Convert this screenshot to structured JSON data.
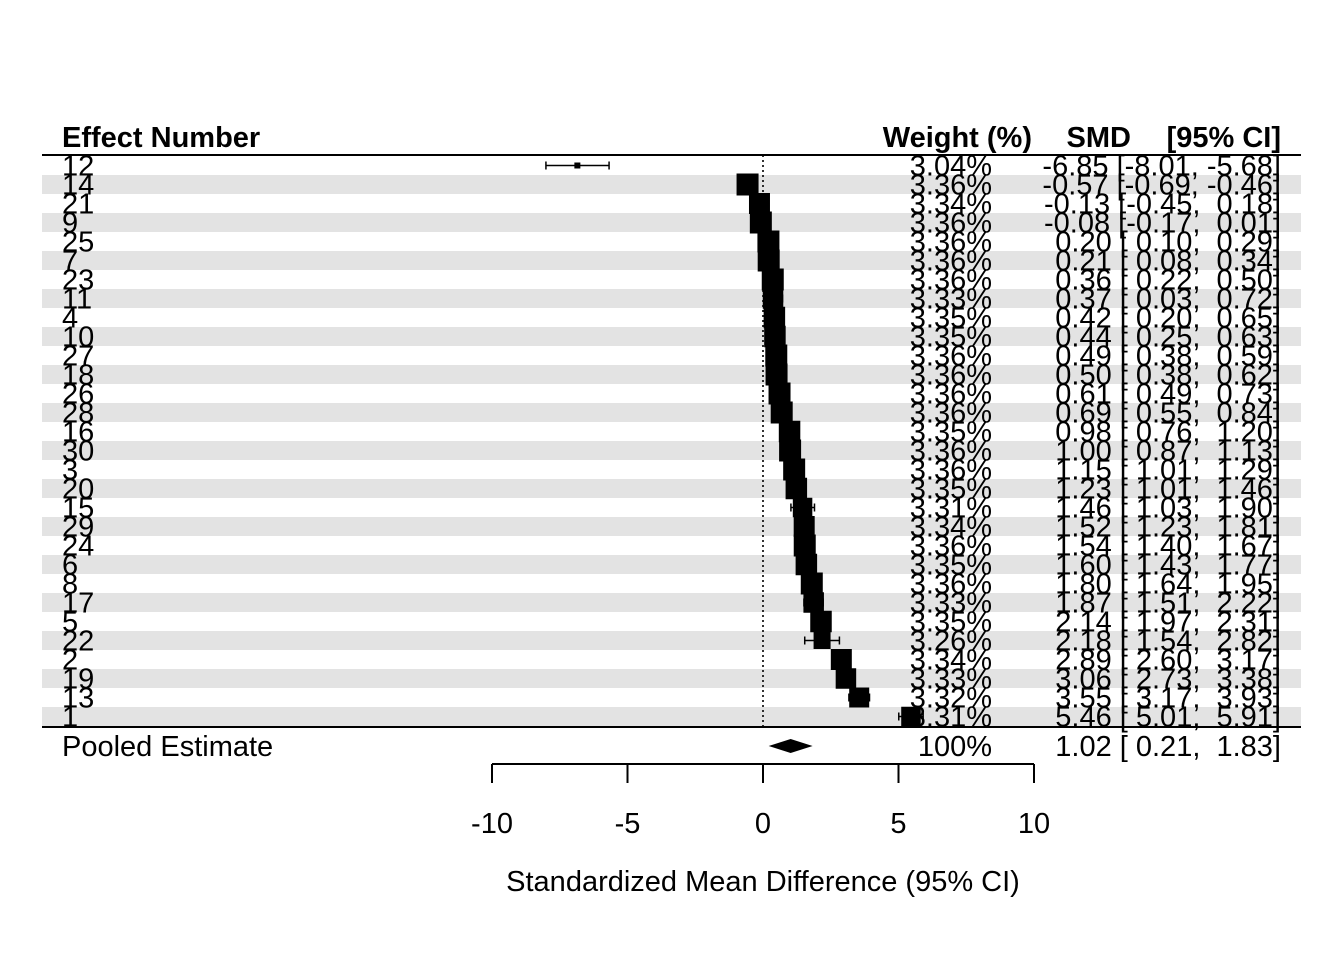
{
  "chart_data": {
    "type": "forest",
    "header": {
      "label_col": "Effect Number",
      "weight_col": "Weight (%)",
      "smd_col": "SMD",
      "ci_col": "[95% CI]"
    },
    "xlabel": "Standardized Mean Difference (95% CI)",
    "xlim": [
      -10,
      10
    ],
    "xticks": [
      -10,
      -5,
      0,
      5,
      10
    ],
    "reference_line": 0,
    "striped_rows": true,
    "rows": [
      {
        "label": "12",
        "weight": "3.04%",
        "smd": -6.85,
        "lo": -8.01,
        "hi": -5.68
      },
      {
        "label": "14",
        "weight": "3.36%",
        "smd": -0.57,
        "lo": -0.69,
        "hi": -0.46
      },
      {
        "label": "21",
        "weight": "3.34%",
        "smd": -0.13,
        "lo": -0.45,
        "hi": 0.18
      },
      {
        "label": "9",
        "weight": "3.36%",
        "smd": -0.08,
        "lo": -0.17,
        "hi": 0.01
      },
      {
        "label": "25",
        "weight": "3.36%",
        "smd": 0.2,
        "lo": 0.1,
        "hi": 0.29
      },
      {
        "label": "7",
        "weight": "3.36%",
        "smd": 0.21,
        "lo": 0.08,
        "hi": 0.34
      },
      {
        "label": "23",
        "weight": "3.36%",
        "smd": 0.36,
        "lo": 0.22,
        "hi": 0.5
      },
      {
        "label": "11",
        "weight": "3.33%",
        "smd": 0.37,
        "lo": 0.03,
        "hi": 0.72
      },
      {
        "label": "4",
        "weight": "3.35%",
        "smd": 0.42,
        "lo": 0.2,
        "hi": 0.65
      },
      {
        "label": "10",
        "weight": "3.35%",
        "smd": 0.44,
        "lo": 0.25,
        "hi": 0.63
      },
      {
        "label": "27",
        "weight": "3.36%",
        "smd": 0.49,
        "lo": 0.38,
        "hi": 0.59
      },
      {
        "label": "18",
        "weight": "3.36%",
        "smd": 0.5,
        "lo": 0.38,
        "hi": 0.62
      },
      {
        "label": "26",
        "weight": "3.36%",
        "smd": 0.61,
        "lo": 0.49,
        "hi": 0.73
      },
      {
        "label": "28",
        "weight": "3.36%",
        "smd": 0.69,
        "lo": 0.55,
        "hi": 0.84
      },
      {
        "label": "16",
        "weight": "3.35%",
        "smd": 0.98,
        "lo": 0.76,
        "hi": 1.2
      },
      {
        "label": "30",
        "weight": "3.36%",
        "smd": 1.0,
        "lo": 0.87,
        "hi": 1.13
      },
      {
        "label": "3",
        "weight": "3.36%",
        "smd": 1.15,
        "lo": 1.01,
        "hi": 1.29
      },
      {
        "label": "20",
        "weight": "3.35%",
        "smd": 1.23,
        "lo": 1.01,
        "hi": 1.46
      },
      {
        "label": "15",
        "weight": "3.31%",
        "smd": 1.46,
        "lo": 1.03,
        "hi": 1.9
      },
      {
        "label": "29",
        "weight": "3.34%",
        "smd": 1.52,
        "lo": 1.23,
        "hi": 1.81
      },
      {
        "label": "24",
        "weight": "3.36%",
        "smd": 1.54,
        "lo": 1.4,
        "hi": 1.67
      },
      {
        "label": "6",
        "weight": "3.35%",
        "smd": 1.6,
        "lo": 1.43,
        "hi": 1.77
      },
      {
        "label": "8",
        "weight": "3.36%",
        "smd": 1.8,
        "lo": 1.64,
        "hi": 1.95
      },
      {
        "label": "17",
        "weight": "3.33%",
        "smd": 1.87,
        "lo": 1.51,
        "hi": 2.22
      },
      {
        "label": "5",
        "weight": "3.35%",
        "smd": 2.14,
        "lo": 1.97,
        "hi": 2.31
      },
      {
        "label": "22",
        "weight": "3.26%",
        "smd": 2.18,
        "lo": 1.54,
        "hi": 2.82
      },
      {
        "label": "2",
        "weight": "3.34%",
        "smd": 2.89,
        "lo": 2.6,
        "hi": 3.17
      },
      {
        "label": "19",
        "weight": "3.33%",
        "smd": 3.06,
        "lo": 2.73,
        "hi": 3.38
      },
      {
        "label": "13",
        "weight": "3.32%",
        "smd": 3.55,
        "lo": 3.17,
        "hi": 3.93
      },
      {
        "label": "1",
        "weight": "3.31%",
        "smd": 5.46,
        "lo": 5.01,
        "hi": 5.91
      }
    ],
    "pooled": {
      "label": "Pooled Estimate",
      "weight": "100%",
      "smd": 1.02,
      "lo": 0.21,
      "hi": 1.83
    }
  }
}
